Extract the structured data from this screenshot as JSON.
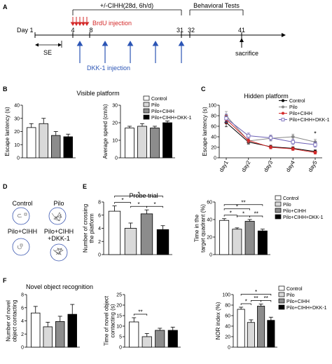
{
  "panel_letters": [
    "A",
    "B",
    "C",
    "D",
    "E",
    "F"
  ],
  "timeline": {
    "header_cihh": "+/-CIHH(28d, 6h/d)",
    "header_behavior": "Behavioral Tests",
    "brdu_label": "BrdU injection",
    "dkk_label": "DKK-1 injection",
    "se_label": "SE",
    "sacrifice_label": "sacrifice",
    "day_prefix": "Day 1",
    "ticks": [
      "4",
      "8",
      "31",
      "32",
      "41"
    ]
  },
  "legend_groups": [
    "Control",
    "Pilo",
    "Pilo+CIHH",
    "Pilo+CIHH+DKK-1"
  ],
  "colors": {
    "control": "#ffffff",
    "pilo": "#d9d9d9",
    "cihh": "#8c8c8c",
    "dkk": "#000000",
    "red": "#d42a2a",
    "blue": "#2b55b5"
  },
  "panel_d": {
    "labels": [
      "Control",
      "Pilo",
      "Pilo+CIHH",
      "Pilo+CIHH\n+DKK-1"
    ]
  },
  "chart_data": [
    {
      "id": "B1",
      "type": "bar",
      "title": "Visible platform",
      "categories": [
        "Control",
        "Pilo",
        "Pilo+CIHH",
        "Pilo+CIHH+DKK-1"
      ],
      "values": [
        23,
        26,
        17,
        16
      ],
      "errors": [
        3,
        4,
        3,
        2
      ],
      "ylabel": "Escape lantency (s)",
      "ylim": [
        0,
        40
      ],
      "yticks": [
        0,
        10,
        20,
        30,
        40
      ],
      "sig": []
    },
    {
      "id": "B2",
      "type": "bar",
      "title": "",
      "categories": [
        "Control",
        "Pilo",
        "Pilo+CIHH",
        "Pilo+CIHH+DKK-1"
      ],
      "values": [
        17,
        18,
        17,
        20
      ],
      "errors": [
        1,
        1.5,
        1,
        1
      ],
      "ylabel": "Average speed (cm/s)",
      "ylim": [
        0,
        30
      ],
      "yticks": [
        0,
        10,
        20,
        30
      ],
      "sig": []
    },
    {
      "id": "C",
      "type": "line",
      "title": "Hidden platform",
      "x": [
        "day1",
        "day2",
        "day3",
        "day4",
        "day5"
      ],
      "ylabel": "Escape lantency (s)",
      "ylim": [
        0,
        100
      ],
      "yticks": [
        0,
        20,
        40,
        60,
        80,
        100
      ],
      "series": [
        {
          "name": "Control",
          "values": [
            67,
            30,
            21,
            18,
            12
          ],
          "errors": [
            8,
            4,
            3,
            3,
            3
          ]
        },
        {
          "name": "Pilo",
          "values": [
            80,
            32,
            37,
            40,
            30
          ],
          "errors": [
            8,
            5,
            5,
            5,
            5
          ]
        },
        {
          "name": "Pilo+CIHH",
          "values": [
            73,
            33,
            20,
            17,
            10
          ],
          "errors": [
            8,
            4,
            3,
            3,
            3
          ]
        },
        {
          "name": "Pilo+CIHH+DKK-1",
          "values": [
            75,
            42,
            38,
            30,
            25
          ],
          "errors": [
            8,
            5,
            5,
            5,
            5
          ]
        }
      ],
      "annotations": [
        {
          "x": "day5",
          "text": "*"
        }
      ]
    },
    {
      "id": "E1",
      "type": "bar",
      "title": "Probe trial",
      "categories": [
        "Control",
        "Pilo",
        "Pilo+CIHH",
        "Pilo+CIHH+DKK-1"
      ],
      "values": [
        6.6,
        4.0,
        6.2,
        3.8
      ],
      "errors": [
        0.8,
        0.8,
        0.6,
        0.6
      ],
      "ylabel": "Number of crossing\nthe platform",
      "ylim": [
        0,
        8
      ],
      "yticks": [
        0,
        2,
        4,
        6,
        8
      ],
      "sig": [
        {
          "a": 0,
          "b": 1,
          "label": "*",
          "level": 0
        },
        {
          "a": 1,
          "b": 2,
          "label": "*",
          "level": 0
        },
        {
          "a": 2,
          "b": 3,
          "label": "*",
          "level": 0
        },
        {
          "a": 0,
          "b": 3,
          "label": "*",
          "level": 1
        }
      ]
    },
    {
      "id": "E2",
      "type": "bar",
      "title": "",
      "categories": [
        "Control",
        "Pilo",
        "Pilo+CIHH",
        "Pilo+CIHH+DKK-1"
      ],
      "values": [
        39,
        29,
        38,
        27
      ],
      "errors": [
        2,
        1.5,
        2,
        2
      ],
      "ylabel": "Time in the\ntarget quadrant (%)",
      "ylim": [
        0,
        60
      ],
      "yticks": [
        0,
        20,
        40,
        60
      ],
      "sig": [
        {
          "a": 0,
          "b": 1,
          "label": "*",
          "level": 0
        },
        {
          "a": 1,
          "b": 2,
          "label": "*",
          "level": 0
        },
        {
          "a": 2,
          "b": 3,
          "label": "**",
          "level": 0
        },
        {
          "a": 0,
          "b": 2,
          "label": "*",
          "level": 1
        },
        {
          "a": 0,
          "b": 3,
          "label": "**",
          "level": 2
        }
      ]
    },
    {
      "id": "F1",
      "type": "bar",
      "title": "Novel object recognition",
      "categories": [
        "Control",
        "Pilo",
        "Pilo+CIHH",
        "Pilo+CIHH+DKK-1"
      ],
      "values": [
        5.2,
        3.1,
        3.9,
        5.0
      ],
      "errors": [
        1.0,
        0.7,
        0.8,
        1.5
      ],
      "ylabel": "Number of novel\nobject contacting",
      "ylim": [
        0,
        8
      ],
      "yticks": [
        0,
        2,
        4,
        6,
        8
      ],
      "sig": []
    },
    {
      "id": "F2",
      "type": "bar",
      "title": "",
      "categories": [
        "Control",
        "Pilo",
        "Pilo+CIHH",
        "Pilo+CIHH+DKK-1"
      ],
      "values": [
        12,
        5,
        8,
        8
      ],
      "errors": [
        2,
        1.5,
        1,
        1.5
      ],
      "ylabel": "Time of novel object\ncontacting (s)",
      "ylim": [
        0,
        25
      ],
      "yticks": [
        0,
        5,
        10,
        15,
        20,
        25
      ],
      "sig": [
        {
          "a": 0,
          "b": 1,
          "label": "**",
          "level": 0
        }
      ]
    },
    {
      "id": "F3",
      "type": "bar",
      "title": "",
      "categories": [
        "Control",
        "Pilo",
        "Pilo+CIHH",
        "Pilo+CIHH+DKK-1"
      ],
      "values": [
        72,
        47,
        78,
        51
      ],
      "errors": [
        4,
        5,
        4,
        6
      ],
      "ylabel": "NOR index (%)",
      "ylim": [
        0,
        100
      ],
      "yticks": [
        0,
        20,
        40,
        60,
        80,
        100
      ],
      "sig": [
        {
          "a": 0,
          "b": 1,
          "label": "*",
          "level": 0
        },
        {
          "a": 1,
          "b": 2,
          "label": "**",
          "level": 0
        },
        {
          "a": 2,
          "b": 3,
          "label": "**",
          "level": 0
        },
        {
          "a": 0,
          "b": 3,
          "label": "*",
          "level": 1
        }
      ]
    }
  ]
}
